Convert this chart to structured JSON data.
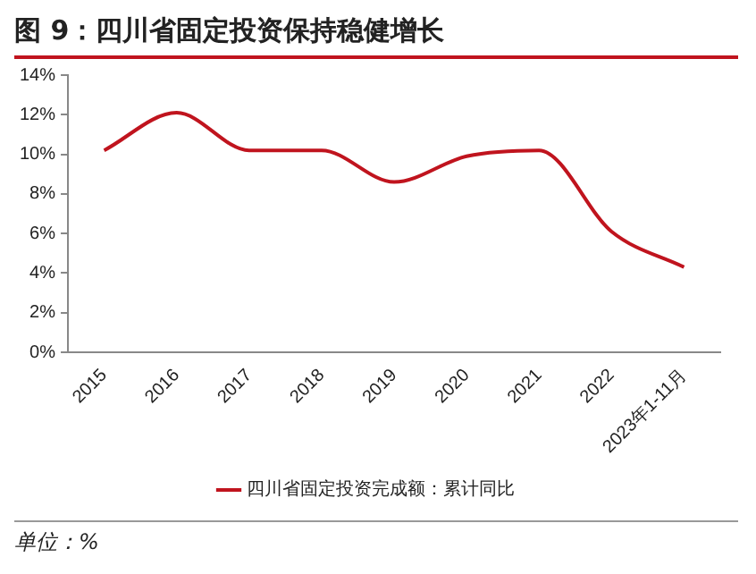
{
  "chart_data": {
    "type": "line",
    "title": "图 9：四川省固定投资保持稳健增长",
    "categories": [
      "2015",
      "2016",
      "2017",
      "2018",
      "2019",
      "2020",
      "2021",
      "2022",
      "2023年1-11月"
    ],
    "series": [
      {
        "name": "四川省固定投资完成额：累计同比",
        "color": "#c0141e",
        "values": [
          10.2,
          12.1,
          10.2,
          10.2,
          8.6,
          9.9,
          10.2,
          6.1,
          4.3
        ]
      }
    ],
    "ylim": [
      0,
      14
    ],
    "yticks": [
      {
        "value": 0,
        "label": "0%"
      },
      {
        "value": 2,
        "label": "2%"
      },
      {
        "value": 4,
        "label": "4%"
      },
      {
        "value": 6,
        "label": "6%"
      },
      {
        "value": 8,
        "label": "8%"
      },
      {
        "value": 10,
        "label": "10%"
      },
      {
        "value": 12,
        "label": "12%"
      },
      {
        "value": 14,
        "label": "14%"
      }
    ],
    "grid": false,
    "legend": "bottom",
    "marker": "none",
    "line_style": "solid",
    "annotations": [
      "单位：%"
    ]
  }
}
